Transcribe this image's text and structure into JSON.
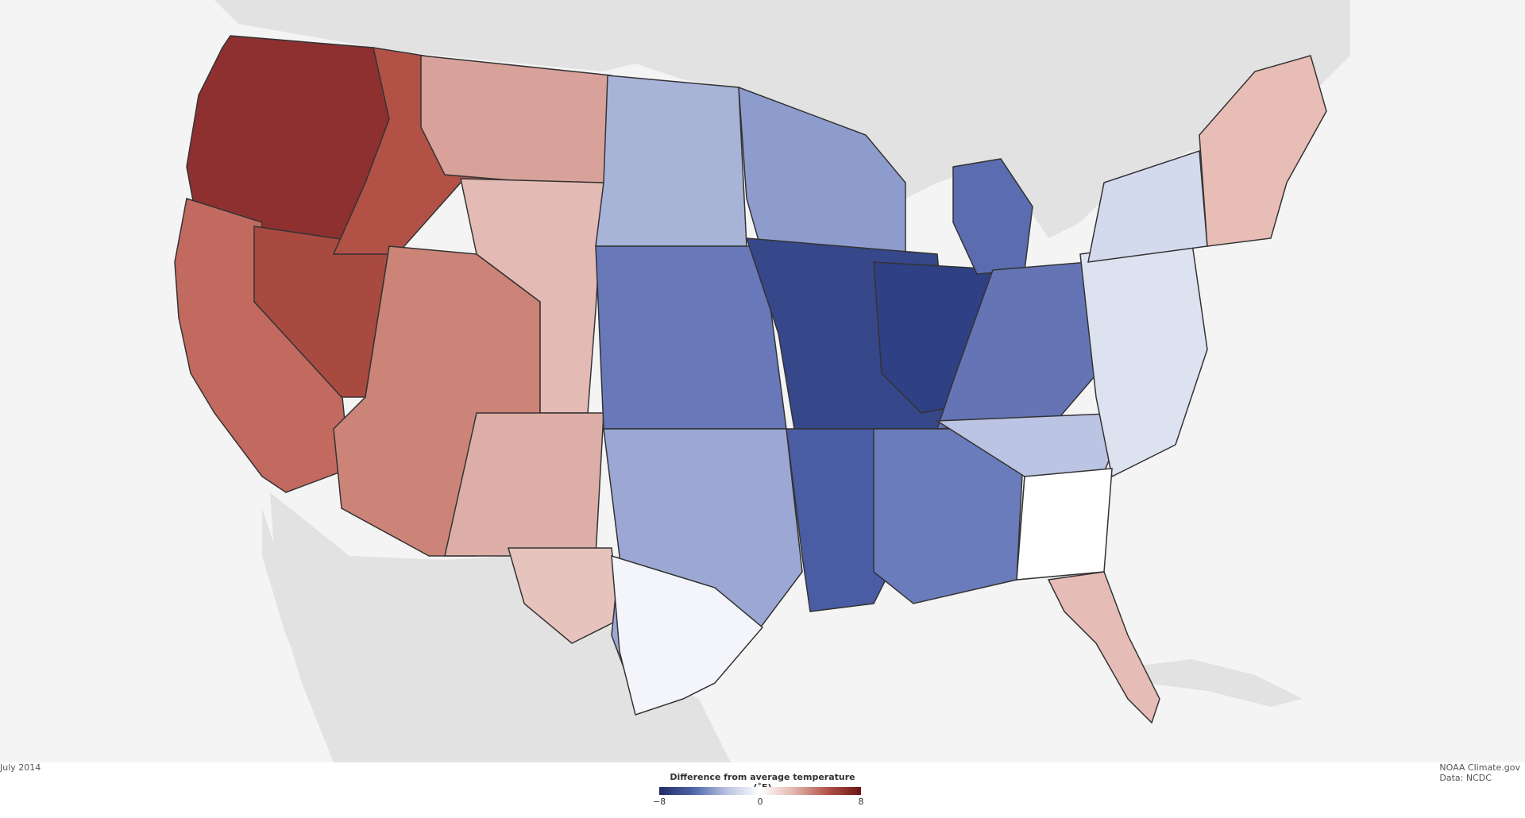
{
  "map": {
    "date_label": "July 2014",
    "credit_line1": "NOAA Climate.gov",
    "credit_line2": "Data: NCDC"
  },
  "legend": {
    "title": "Difference from average temperature (˚F)",
    "min_label": "−8",
    "mid_label": "0",
    "max_label": "8",
    "colors": [
      "#1f2b63",
      "#4e64a8",
      "#b9c2e2",
      "#ffffff",
      "#e3b5ae",
      "#b4544a",
      "#6b1515"
    ]
  }
}
